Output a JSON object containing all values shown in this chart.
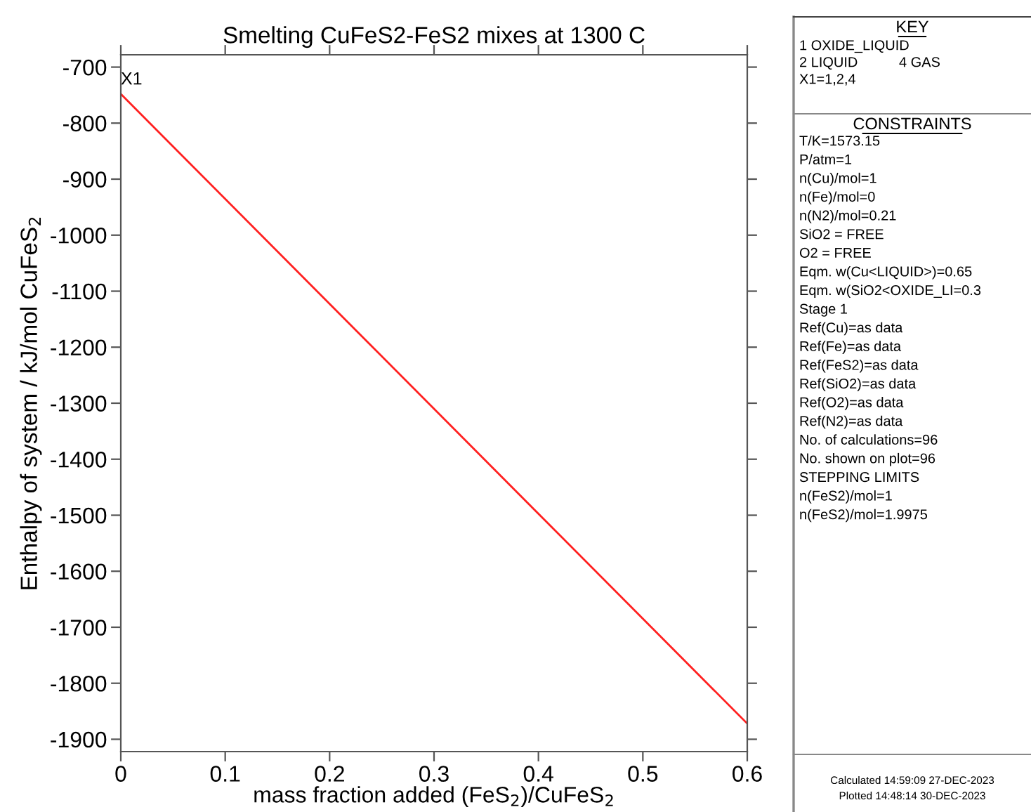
{
  "chart_data": {
    "type": "line",
    "title": "Smelting CuFeS2-FeS2 mixes at 1300 C",
    "xlabel": "mass fraction added (FeS$_{2}$)/CuFeS$_{2}$",
    "ylabel": "Enthalpy of system / kJ/mol CuFeS$_{2}$",
    "series": [
      {
        "color": "#ff2020",
        "x": [
          0,
          0.6
        ],
        "values": [
          -748,
          -1872
        ]
      }
    ],
    "xlim": [
      0,
      0.6
    ],
    "xticks": [
      0,
      0.1,
      0.2,
      0.3,
      0.4,
      0.5,
      0.6
    ],
    "ylim": [
      -1922,
      -678
    ],
    "yticks": [
      -1900,
      -1800,
      -1700,
      -1600,
      -1500,
      -1400,
      -1300,
      -1200,
      -1100,
      -1000,
      -900,
      -800,
      -700
    ],
    "grid": false,
    "legend": false,
    "marker": "none",
    "line_style": "solid",
    "annotations": [
      {
        "text": "X1",
        "x": 0,
        "y": -748
      },
      "KEY",
      "1 OXIDE_LIQUID",
      "2 LIQUID",
      "4 GAS",
      "X1=1,2,4",
      "CONSTRAINTS",
      "T/K=1573.15",
      "P/atm=1",
      "n(Cu)/mol=1",
      "n(Fe)/mol=0",
      "n(N2)/mol=0.21",
      "SiO2 = FREE",
      "O2 = FREE",
      "Eqm. w(Cu<LIQUID>)=0.65",
      "Eqm. w(SiO2<OXIDE_LI=0.3",
      "Stage 1",
      "Ref(Cu)=as data",
      "Ref(Fe)=as data",
      "Ref(FeS2)=as data",
      "Ref(SiO2)=as data",
      "Ref(O2)=as data",
      "Ref(N2)=as data",
      "No. of calculations=96",
      "No. shown on plot=96",
      "STEPPING LIMITS",
      "n(FeS2)/mol=1",
      "n(FeS2)/mol=1.9975",
      "Calculated 14:59:09 27-DEC-2023",
      "Plotted 14:48:14 30-DEC-2023"
    ]
  }
}
